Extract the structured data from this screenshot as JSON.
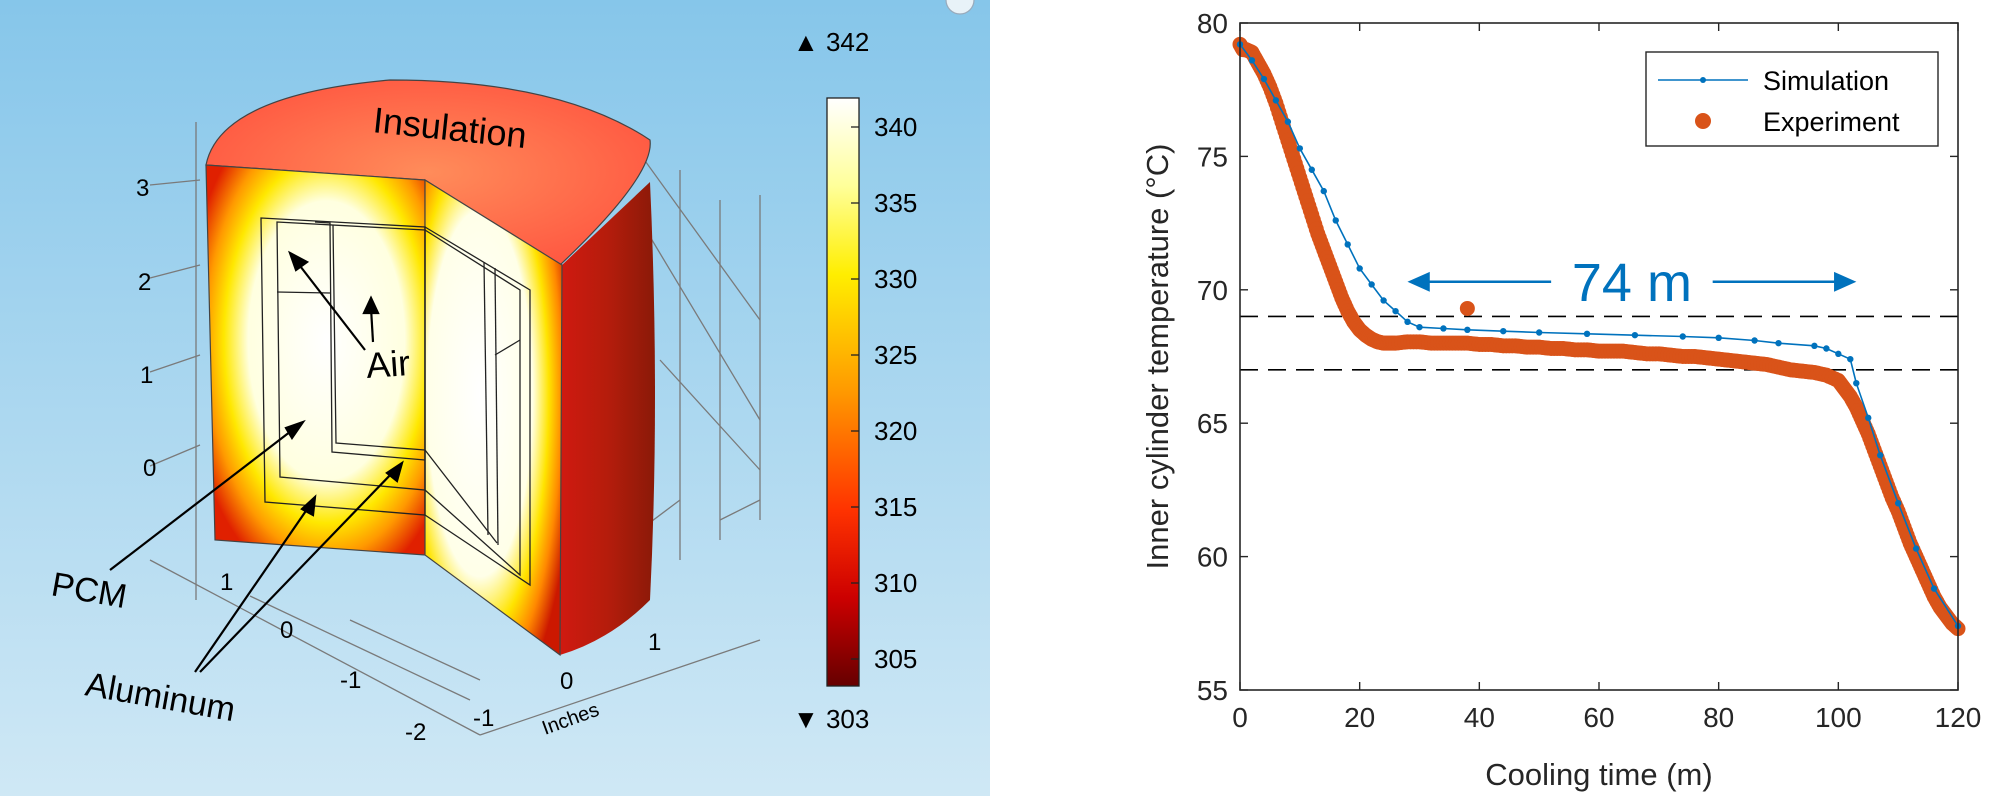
{
  "left_figure": {
    "colorbar": {
      "max_marker": "▲ 342",
      "min_marker": "▼ 303",
      "ticks": [
        "340",
        "335",
        "330",
        "325",
        "320",
        "315",
        "310",
        "305"
      ]
    },
    "vertical_axis_ticks": [
      "3",
      "2",
      "1",
      "0"
    ],
    "front_axis_ticks": [
      "1",
      "0",
      "-1",
      "-2"
    ],
    "right_axis_ticks": [
      "-1",
      "0",
      "1"
    ],
    "axis_unit_label": "Inches",
    "labels": {
      "insulation": "Insulation",
      "air": "Air",
      "pcm": "PCM",
      "aluminum": "Aluminum"
    }
  },
  "chart_data": {
    "type": "line",
    "xlabel": "Cooling time (m)",
    "ylabel": "Inner cylinder temperature (°C)",
    "xlim": [
      0,
      120
    ],
    "ylim": [
      55,
      80
    ],
    "xticks": [
      "0",
      "20",
      "40",
      "60",
      "80",
      "100",
      "120"
    ],
    "yticks": [
      "55",
      "60",
      "65",
      "70",
      "75",
      "80"
    ],
    "legend_position": "top-right",
    "annotation": "74 m",
    "reference_lines": [
      69,
      67
    ],
    "series": [
      {
        "name": "Simulation",
        "color": "#0072BD",
        "marker": "dot",
        "x": [
          0,
          2,
          4,
          6,
          8,
          10,
          12,
          14,
          16,
          18,
          20,
          22,
          24,
          26,
          28,
          30,
          34,
          38,
          44,
          50,
          58,
          66,
          74,
          80,
          86,
          90,
          96,
          98,
          100,
          102,
          103,
          105,
          107,
          110,
          113,
          116,
          120
        ],
        "y": [
          79.2,
          78.6,
          77.9,
          77.1,
          76.3,
          75.3,
          74.5,
          73.7,
          72.6,
          71.7,
          70.8,
          70.2,
          69.6,
          69.2,
          68.8,
          68.6,
          68.55,
          68.5,
          68.45,
          68.4,
          68.35,
          68.3,
          68.25,
          68.2,
          68.1,
          68.0,
          67.9,
          67.8,
          67.6,
          67.4,
          66.5,
          65.2,
          63.8,
          62.0,
          60.3,
          58.8,
          57.4
        ]
      },
      {
        "name": "Experiment",
        "color": "#D95319",
        "marker": "filled-circle",
        "x": [
          0,
          0.5,
          1,
          2,
          3,
          4,
          5,
          6,
          7,
          8,
          9,
          10,
          11,
          12,
          13,
          14,
          15,
          16,
          17,
          18,
          19,
          20,
          21,
          22,
          23,
          24,
          25,
          26,
          28,
          30,
          32,
          34,
          36,
          38,
          40,
          42,
          44,
          46,
          48,
          50,
          52,
          54,
          56,
          58,
          60,
          62,
          64,
          66,
          68,
          70,
          72,
          74,
          76,
          78,
          80,
          82,
          84,
          86,
          88,
          90,
          92,
          94,
          96,
          98,
          100,
          101,
          102,
          103,
          104,
          105,
          106,
          107,
          108,
          109,
          110,
          111,
          112,
          113,
          114,
          115,
          116,
          117,
          118,
          119,
          120
        ],
        "y": [
          79.2,
          79.0,
          79.0,
          78.9,
          78.5,
          78.1,
          77.6,
          77.0,
          76.3,
          75.6,
          74.9,
          74.2,
          73.5,
          72.8,
          72.1,
          71.5,
          70.9,
          70.3,
          69.7,
          69.2,
          68.8,
          68.5,
          68.3,
          68.15,
          68.05,
          68.0,
          68.0,
          68.0,
          68.05,
          68.05,
          68.0,
          68.0,
          68.0,
          68.0,
          67.95,
          67.95,
          67.9,
          67.9,
          67.85,
          67.85,
          67.8,
          67.8,
          67.75,
          67.75,
          67.7,
          67.7,
          67.7,
          67.65,
          67.6,
          67.6,
          67.55,
          67.5,
          67.5,
          67.45,
          67.4,
          67.35,
          67.3,
          67.25,
          67.2,
          67.1,
          67.0,
          66.95,
          66.9,
          66.8,
          66.6,
          66.3,
          66.0,
          65.6,
          65.1,
          64.6,
          64.0,
          63.4,
          62.8,
          62.2,
          61.7,
          61.1,
          60.5,
          60.0,
          59.5,
          59.0,
          58.5,
          58.1,
          57.8,
          57.5,
          57.3
        ]
      }
    ],
    "outlier": {
      "x": 38,
      "y": 69.3
    }
  }
}
